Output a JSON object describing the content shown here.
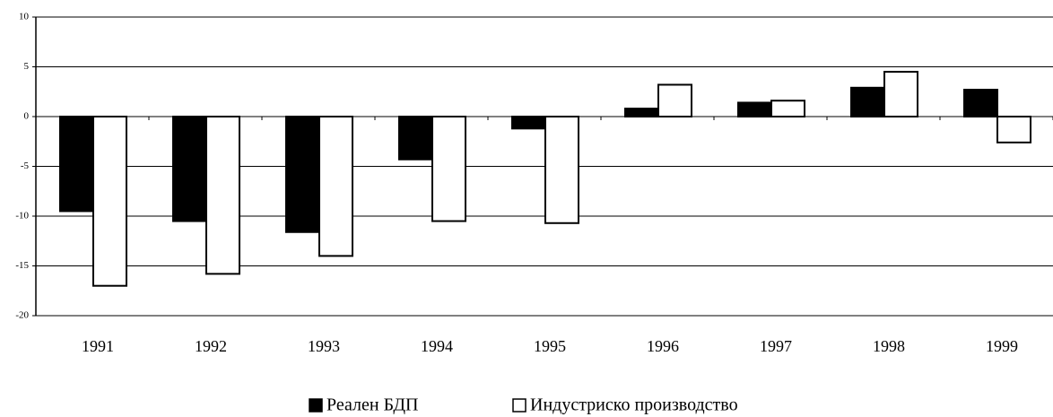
{
  "chart_data": {
    "type": "bar",
    "categories": [
      "1991",
      "1992",
      "1993",
      "1994",
      "1995",
      "1996",
      "1997",
      "1998",
      "1999"
    ],
    "series": [
      {
        "name": "Реален БДП",
        "color": "#000000",
        "values": [
          -9.5,
          -10.5,
          -11.6,
          -4.3,
          -1.2,
          0.8,
          1.4,
          2.9,
          2.7
        ]
      },
      {
        "name": "Индустриско производство",
        "color": "#ffffff",
        "values": [
          -17.0,
          -15.8,
          -14.0,
          -10.5,
          -10.7,
          3.2,
          1.6,
          4.5,
          -2.6
        ]
      }
    ],
    "ylim": [
      -20,
      10
    ],
    "yticks": [
      -20,
      -15,
      -10,
      -5,
      0,
      5,
      10
    ],
    "grid": true,
    "legend": "bottom"
  }
}
